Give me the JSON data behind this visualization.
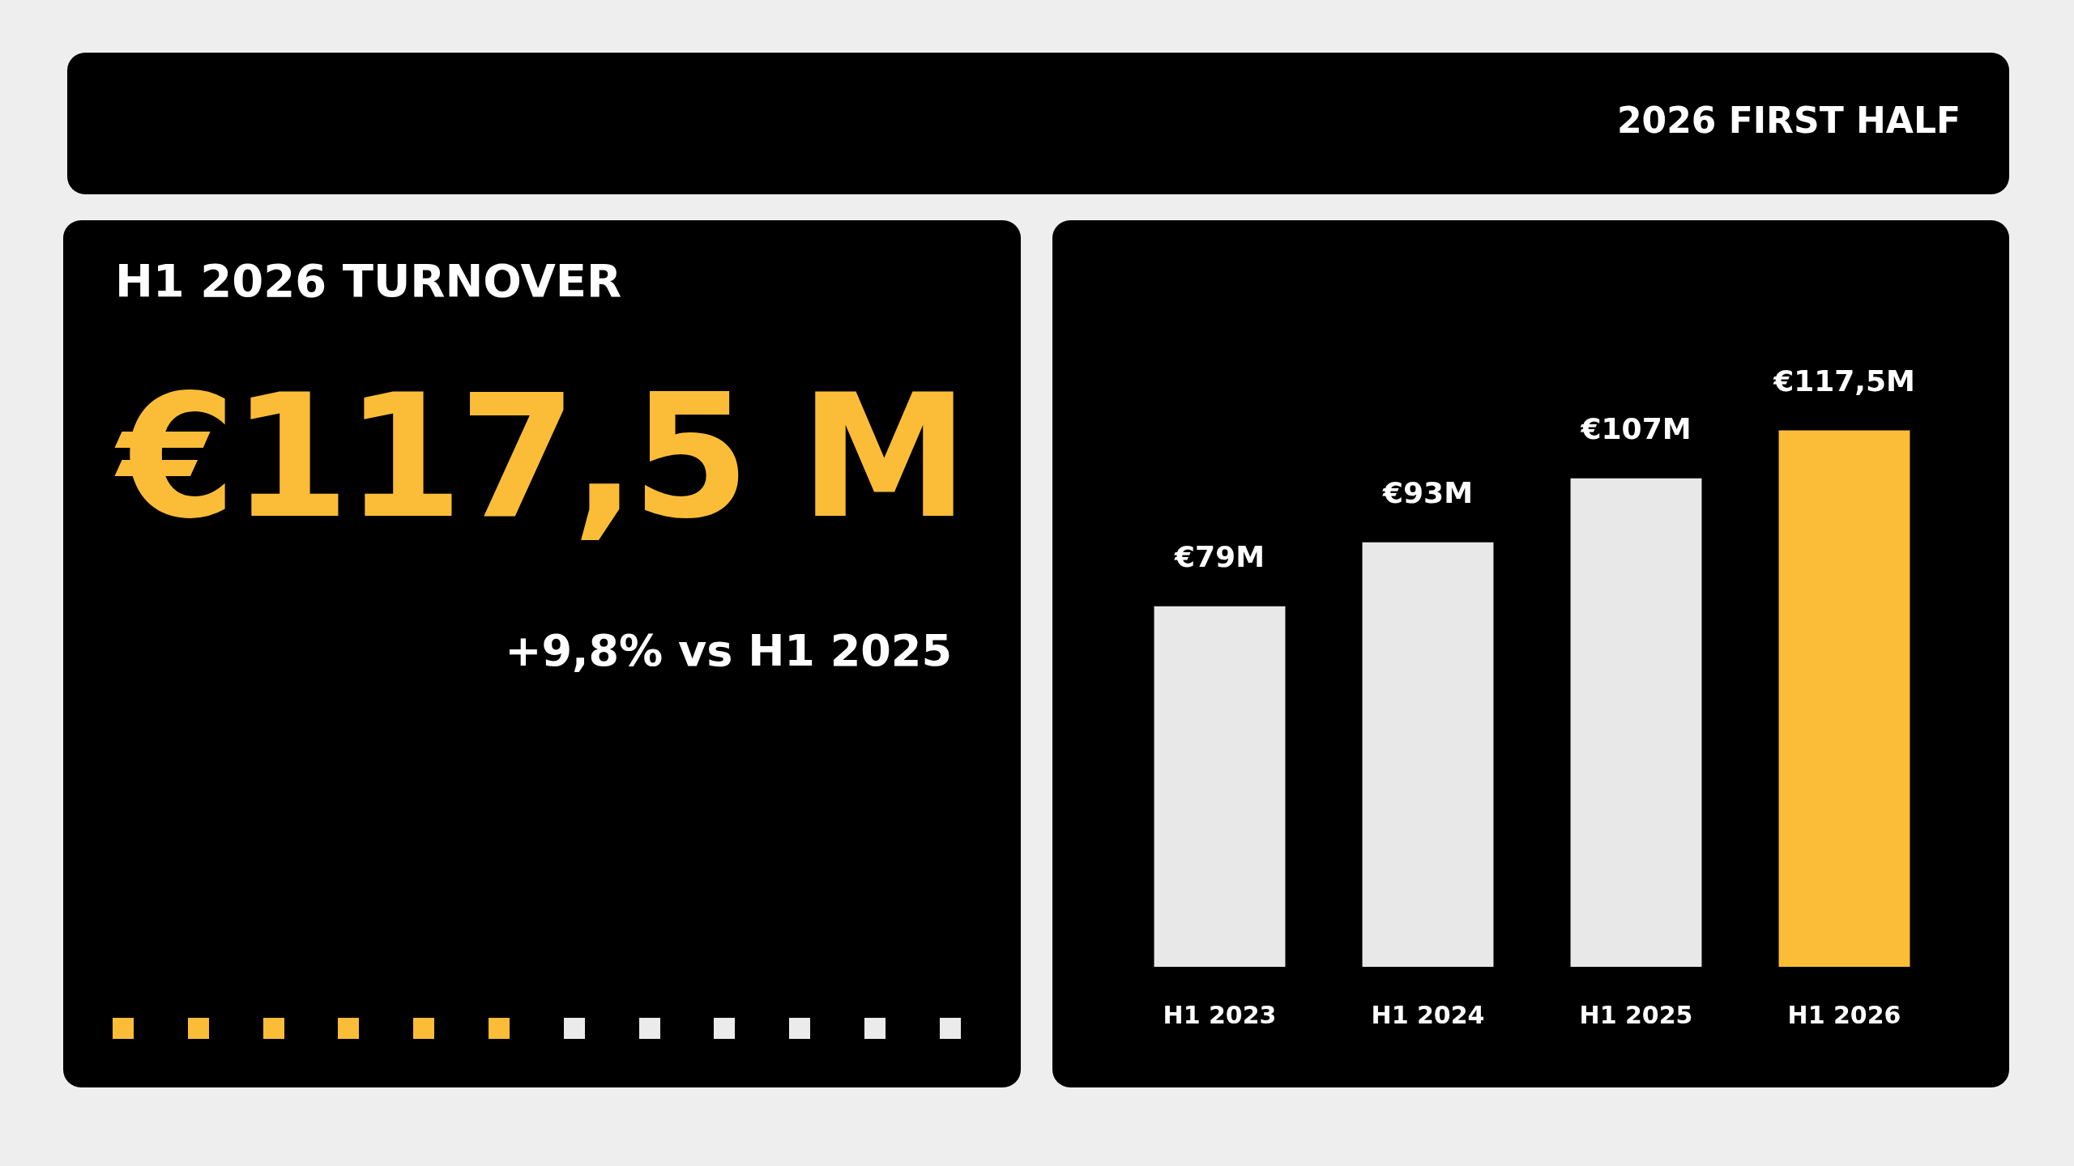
{
  "chart_data": {
    "type": "bar",
    "title": "2026 FIRST HALF",
    "subtitle": "H1 2026 TURNOVER",
    "annotations": [
      "€117,5 M",
      "+9,8% vs H1 2025"
    ],
    "categories": [
      "H1 2023",
      "H1 2024",
      "H1 2025",
      "H1 2026"
    ],
    "values": [
      79,
      93,
      107,
      117.5
    ],
    "colors": [
      "#e8e8e8",
      "#e8e8e8",
      "#e8e8e8",
      "#fbbd38"
    ],
    "value_labels": [
      "€79M",
      "€93M",
      "€107M",
      "€117,5M"
    ]
  }
}
